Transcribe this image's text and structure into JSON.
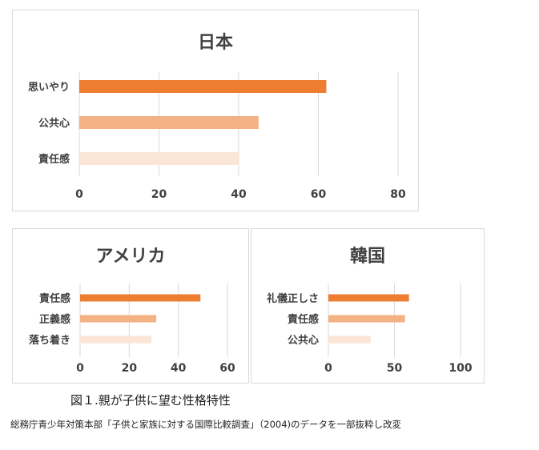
{
  "chart_data": [
    {
      "type": "bar",
      "orientation": "horizontal",
      "title": "日本",
      "categories": [
        "思いやり",
        "公共心",
        "責任感"
      ],
      "values": [
        62,
        45,
        40
      ],
      "bar_colors": [
        "#ed7d31",
        "#f4b183",
        "#fbe5d6"
      ],
      "xlim": [
        0,
        80
      ],
      "xticks": [
        0,
        20,
        40,
        60,
        80
      ],
      "grid": true
    },
    {
      "type": "bar",
      "orientation": "horizontal",
      "title": "アメリカ",
      "categories": [
        "責任感",
        "正義感",
        "落ち着き"
      ],
      "values": [
        49,
        31,
        29
      ],
      "bar_colors": [
        "#ed7d31",
        "#f4b183",
        "#fbe5d6"
      ],
      "xlim": [
        0,
        60
      ],
      "xticks": [
        0,
        20,
        40,
        60
      ],
      "grid": true
    },
    {
      "type": "bar",
      "orientation": "horizontal",
      "title": "韓国",
      "categories": [
        "礼儀正しさ",
        "責任感",
        "公共心"
      ],
      "values": [
        61,
        58,
        32
      ],
      "bar_colors": [
        "#ed7d31",
        "#f4b183",
        "#fbe5d6"
      ],
      "xlim": [
        0,
        100
      ],
      "xticks": [
        0,
        50,
        100
      ],
      "grid": true
    }
  ],
  "caption": "図１.親が子供に望む性格特性",
  "source": "総務庁青少年対策本部「子供と家族に対する国際比較調査」（2004)のデータを一部抜粋し改変"
}
